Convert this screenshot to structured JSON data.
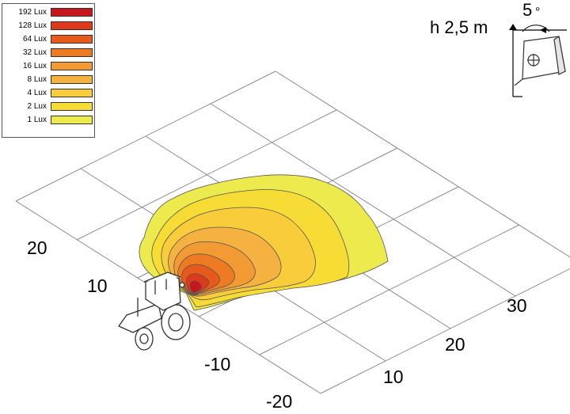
{
  "legend": [
    {
      "label": "192 Lux",
      "color": "#c8161d"
    },
    {
      "label": "128 Lux",
      "color": "#dc3a1a"
    },
    {
      "label": "64 Lux",
      "color": "#e8591c"
    },
    {
      "label": "32 Lux",
      "color": "#ee7a22"
    },
    {
      "label": "16 Lux",
      "color": "#f29a33"
    },
    {
      "label": "8 Lux",
      "color": "#f6b240"
    },
    {
      "label": "4 Lux",
      "color": "#f9cc3c"
    },
    {
      "label": "2 Lux",
      "color": "#f6dc34"
    },
    {
      "label": "1 Lux",
      "color": "#ecea4c"
    }
  ],
  "lamp": {
    "height_label": "h 2,5 m",
    "angle_label": "5",
    "degree_symbol": "°"
  },
  "axis_left": {
    "ticks": [
      "20",
      "10",
      "-10",
      "-20"
    ]
  },
  "axis_right": {
    "ticks": [
      "10",
      "20",
      "30"
    ]
  },
  "icons": {
    "tractor": "tractor-icon",
    "lamp": "work-lamp-icon"
  }
}
